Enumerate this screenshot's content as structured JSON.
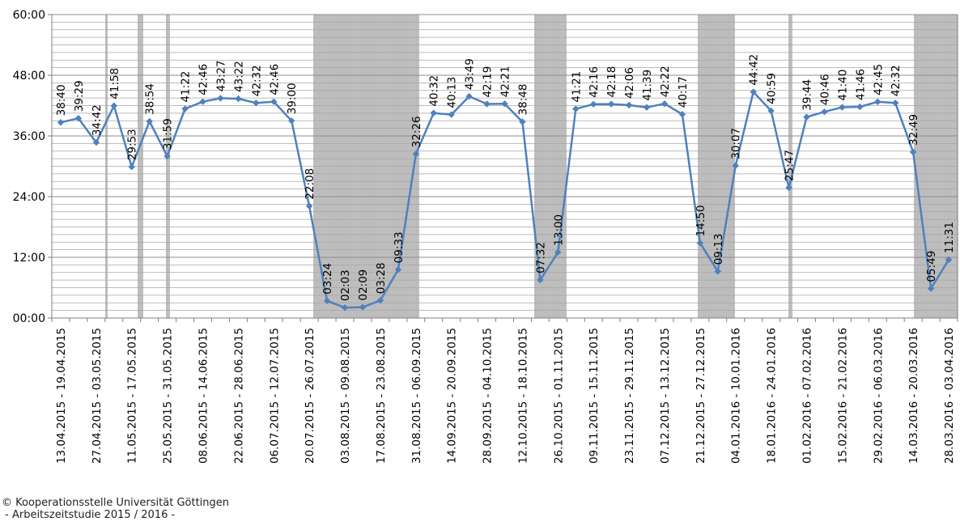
{
  "copyright": {
    "line1": "© Kooperationsstelle Universität Göttingen",
    "line2": " - Arbeitszeitstudie 2015 / 2016 -"
  },
  "chart_data": {
    "type": "line",
    "title": "",
    "xlabel": "",
    "ylabel": "",
    "y_unit": "hh:mm",
    "ylim": [
      "00:00",
      "60:00"
    ],
    "y_ticks": [
      "00:00",
      "12:00",
      "24:00",
      "36:00",
      "48:00",
      "60:00"
    ],
    "grid": true,
    "line_color": "#4f81bd",
    "shade_color": "#c0c0c0",
    "x_tick_labels": [
      "13.04.2015 - 19.04.2015",
      "27.04.2015 - 03.05.2015",
      "11.05.2015 - 17.05.2015",
      "25.05.2015 - 31.05.2015",
      "08.06.2015 - 14.06.2015",
      "22.06.2015 - 28.06.2015",
      "06.07.2015 - 12.07.2015",
      "20.07.2015 - 26.07.2015",
      "03.08.2015 - 09.08.2015",
      "17.08.2015 - 23.08.2015",
      "31.08.2015 - 06.09.2015",
      "14.09.2015 - 20.09.2015",
      "28.09.2015 - 04.10.2015",
      "12.10.2015 - 18.10.2015",
      "26.10.2015 - 01.11.2015",
      "09.11.2015 - 15.11.2015",
      "23.11.2015 - 29.11.2015",
      "07.12.2015 - 13.12.2015",
      "21.12.2015 - 27.12.2015",
      "04.01.2016 - 10.01.2016",
      "18.01.2016 - 24.01.2016",
      "01.02.2016 - 07.02.2016",
      "15.02.2016 - 21.02.2016",
      "29.02.2016 - 06.03.2016",
      "14.03.2016 - 20.03.2016",
      "28.03.2016 - 03.04.2016"
    ],
    "values": [
      "38:40",
      "39:29",
      "34:42",
      "41:58",
      "29:53",
      "38:54",
      "31:59",
      "41:22",
      "42:46",
      "43:27",
      "43:22",
      "42:32",
      "42:46",
      "39:00",
      "22:08",
      "03:24",
      "02:03",
      "02:09",
      "03:28",
      "09:33",
      "32:26",
      "40:32",
      "40:13",
      "43:49",
      "42:19",
      "42:21",
      "38:48",
      "07:32",
      "13:00",
      "41:21",
      "42:16",
      "42:18",
      "42:06",
      "41:39",
      "42:22",
      "40:17",
      "14:50",
      "09:13",
      "30:07",
      "44:42",
      "40:59",
      "25:47",
      "39:44",
      "40:46",
      "41:40",
      "41:46",
      "42:45",
      "42:32",
      "32:49",
      "05:49",
      "11:31"
    ]
  }
}
